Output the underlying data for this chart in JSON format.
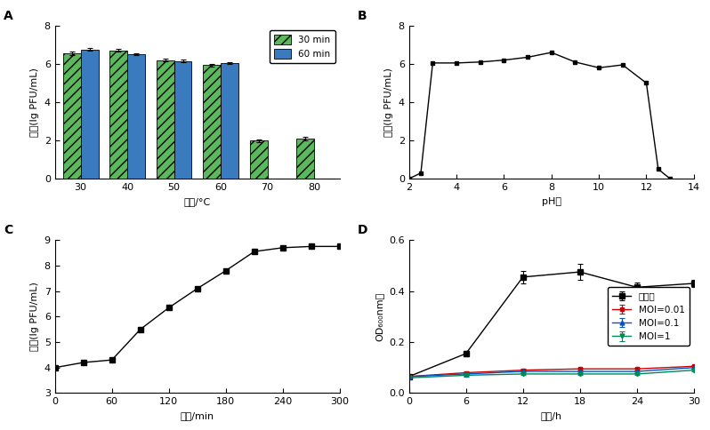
{
  "A": {
    "categories": [
      30,
      40,
      50,
      60,
      70,
      80
    ],
    "bar30": [
      6.55,
      6.7,
      6.2,
      5.95,
      2.0,
      2.1
    ],
    "bar60": [
      6.75,
      6.5,
      6.15,
      6.05,
      null,
      null
    ],
    "err30": [
      0.08,
      0.07,
      0.08,
      0.07,
      0.07,
      0.1
    ],
    "err60": [
      0.07,
      0.06,
      0.07,
      0.06,
      null,
      null
    ],
    "color30": "#5cb85c",
    "color60": "#3a7bbf",
    "ylabel": "效价(lg PFU/mL)",
    "xlabel": "温度/°C",
    "ylim": [
      0,
      8
    ],
    "yticks": [
      0,
      2,
      4,
      6,
      8
    ],
    "label": "A",
    "legend30": "30 min",
    "legend60": "60 min"
  },
  "B": {
    "x": [
      2,
      2.5,
      3,
      4,
      5,
      6,
      7,
      8,
      9,
      10,
      11,
      12,
      12.5,
      13
    ],
    "y": [
      0,
      0.3,
      6.05,
      6.05,
      6.1,
      6.2,
      6.35,
      6.6,
      6.1,
      5.8,
      5.95,
      5.0,
      0.5,
      0
    ],
    "ylabel": "效价(lg PFU/mL)",
    "xlabel": "pH値",
    "ylim": [
      0,
      8
    ],
    "yticks": [
      0,
      2,
      4,
      6,
      8
    ],
    "xlim": [
      2,
      14
    ],
    "xticks": [
      2,
      4,
      6,
      8,
      10,
      12,
      14
    ],
    "label": "B"
  },
  "C": {
    "x": [
      0,
      30,
      60,
      90,
      120,
      150,
      180,
      210,
      240,
      270,
      300
    ],
    "y": [
      4.0,
      4.2,
      4.3,
      5.5,
      6.35,
      7.1,
      7.8,
      8.55,
      8.7,
      8.75,
      8.75
    ],
    "ylabel": "效价(lg PFU/mL)",
    "xlabel": "时间/min",
    "ylim": [
      3,
      9
    ],
    "yticks": [
      3,
      4,
      5,
      6,
      7,
      8,
      9
    ],
    "xlim": [
      0,
      300
    ],
    "xticks": [
      0,
      60,
      120,
      180,
      240,
      300
    ],
    "label": "C"
  },
  "D": {
    "x": [
      0,
      6,
      12,
      18,
      24,
      30
    ],
    "y_control": [
      0.065,
      0.155,
      0.455,
      0.475,
      0.415,
      0.43
    ],
    "y_moi001": [
      0.065,
      0.08,
      0.09,
      0.095,
      0.095,
      0.105
    ],
    "y_moi01": [
      0.065,
      0.075,
      0.085,
      0.085,
      0.085,
      0.1
    ],
    "y_moi1": [
      0.06,
      0.07,
      0.075,
      0.075,
      0.075,
      0.09
    ],
    "err_control": [
      0.005,
      0.01,
      0.025,
      0.03,
      0.02,
      0.015
    ],
    "err_moi001": [
      0.004,
      0.004,
      0.005,
      0.005,
      0.005,
      0.005
    ],
    "err_moi01": [
      0.004,
      0.004,
      0.005,
      0.005,
      0.005,
      0.005
    ],
    "err_moi1": [
      0.004,
      0.004,
      0.004,
      0.004,
      0.004,
      0.005
    ],
    "color_control": "#000000",
    "color_moi001": "#cc0000",
    "color_moi01": "#0055cc",
    "color_moi1": "#008855",
    "ylabel": "OD₆₀₀nm値",
    "xlabel": "时间/h",
    "ylim": [
      0,
      0.6
    ],
    "yticks": [
      0,
      0.2,
      0.4,
      0.6
    ],
    "xlim": [
      0,
      30
    ],
    "xticks": [
      0,
      6,
      12,
      18,
      24,
      30
    ],
    "label": "D",
    "legend_labels": [
      "对照组",
      "MOI=0.01",
      "MOI=0.1",
      "MOI=1"
    ]
  }
}
